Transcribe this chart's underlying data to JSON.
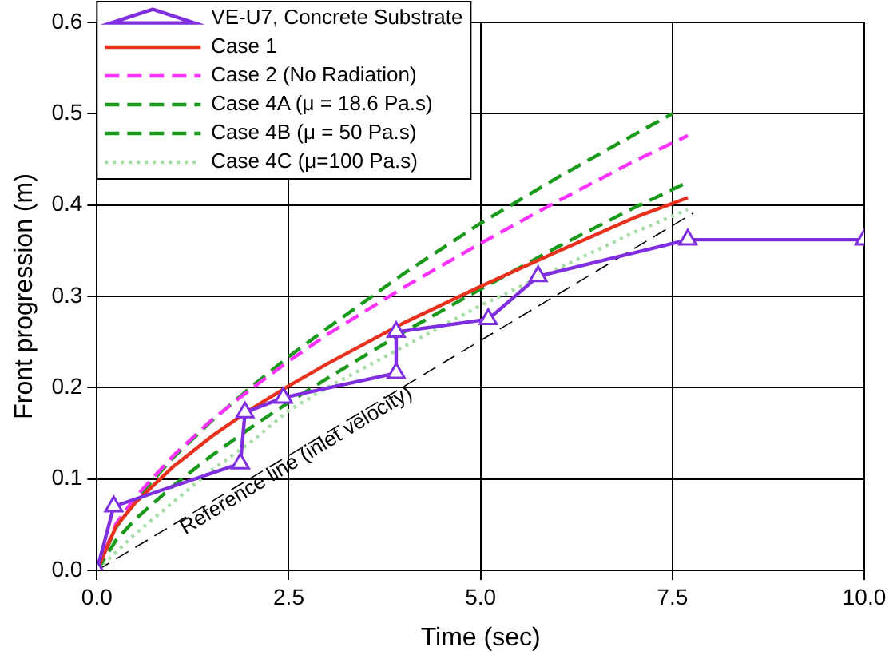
{
  "chart_data": {
    "type": "line",
    "xlabel": "Time (sec)",
    "ylabel": "Front progression (m)",
    "xlim": [
      0,
      10
    ],
    "ylim": [
      0,
      0.6
    ],
    "xticks": [
      {
        "value": 0,
        "label": "0.0"
      },
      {
        "value": 2.5,
        "label": "2.5"
      },
      {
        "value": 5,
        "label": "5.0"
      },
      {
        "value": 7.5,
        "label": "7.5"
      },
      {
        "value": 10,
        "label": "10.0"
      }
    ],
    "yticks": [
      {
        "value": 0,
        "label": "0.0"
      },
      {
        "value": 0.1,
        "label": "0.1"
      },
      {
        "value": 0.2,
        "label": "0.2"
      },
      {
        "value": 0.3,
        "label": "0.3"
      },
      {
        "value": 0.4,
        "label": "0.4"
      },
      {
        "value": 0.5,
        "label": "0.5"
      },
      {
        "value": 0.6,
        "label": "0.6"
      }
    ],
    "grid": true,
    "legend": "top left",
    "series": [
      {
        "name": "VE-U7, Concrete Substrate",
        "color": "#7f2fe0",
        "marker": "triangle",
        "line_style": "solid",
        "x": [
          0,
          0.22,
          1.87,
          1.93,
          2.43,
          3.9,
          3.9,
          5.1,
          5.75,
          7.7,
          10
        ],
        "values": [
          0,
          0.07,
          0.117,
          0.173,
          0.189,
          0.216,
          0.261,
          0.275,
          0.322,
          0.362,
          0.362
        ]
      },
      {
        "name": "Case 1",
        "color": "#e8321e",
        "marker": "none",
        "line_style": "solid",
        "x": [
          0,
          0.25,
          0.5,
          1,
          1.5,
          2,
          2.5,
          3,
          4,
          5,
          6,
          7,
          7.7
        ],
        "values": [
          0,
          0.048,
          0.074,
          0.114,
          0.147,
          0.176,
          0.202,
          0.226,
          0.271,
          0.311,
          0.349,
          0.386,
          0.408
        ]
      },
      {
        "name": "Case 2 (No Radiation)",
        "color": "#ff33ff",
        "marker": "none",
        "line_style": "dashed",
        "x": [
          0,
          0.25,
          0.5,
          1,
          1.5,
          2,
          2.5,
          3,
          4,
          5,
          6,
          7,
          7.7
        ],
        "values": [
          0,
          0.051,
          0.08,
          0.126,
          0.165,
          0.198,
          0.229,
          0.258,
          0.31,
          0.358,
          0.404,
          0.448,
          0.476
        ]
      },
      {
        "name": "Case 4A (μ = 18.6 Pa.s)",
        "color": "#1a9a1a",
        "marker": "none",
        "line_style": "dashed",
        "x": [
          0,
          0.25,
          0.5,
          1,
          1.5,
          2,
          2.5,
          3,
          4,
          5,
          6,
          7,
          7.5
        ],
        "values": [
          0,
          0.047,
          0.077,
          0.124,
          0.164,
          0.2,
          0.234,
          0.265,
          0.325,
          0.38,
          0.43,
          0.477,
          0.5
        ]
      },
      {
        "name": "Case 4B (μ = 50 Pa.s)",
        "color": "#1a9a1a",
        "marker": "none",
        "line_style": "dashed",
        "x": [
          0,
          0.25,
          0.5,
          1,
          1.5,
          2,
          2.5,
          3,
          4,
          5,
          6,
          7,
          7.7
        ],
        "values": [
          0,
          0.033,
          0.056,
          0.093,
          0.126,
          0.156,
          0.184,
          0.21,
          0.261,
          0.308,
          0.354,
          0.397,
          0.425
        ]
      },
      {
        "name": "Case 4C (μ=100 Pa.s)",
        "color": "#a8dca8",
        "marker": "none",
        "line_style": "dotted",
        "x": [
          0,
          0.5,
          1,
          1.5,
          2,
          2.5,
          3,
          4,
          5,
          6,
          7,
          7.7
        ],
        "values": [
          0,
          0.04,
          0.075,
          0.11,
          0.14,
          0.175,
          0.2,
          0.245,
          0.29,
          0.33,
          0.37,
          0.395
        ]
      },
      {
        "color": "#000000",
        "marker": "none",
        "line_style": "dashed",
        "x": [
          0,
          7.77
        ],
        "values": [
          0,
          0.391
        ]
      }
    ],
    "annotations": [
      "Reference line (inlet velocity)"
    ]
  }
}
